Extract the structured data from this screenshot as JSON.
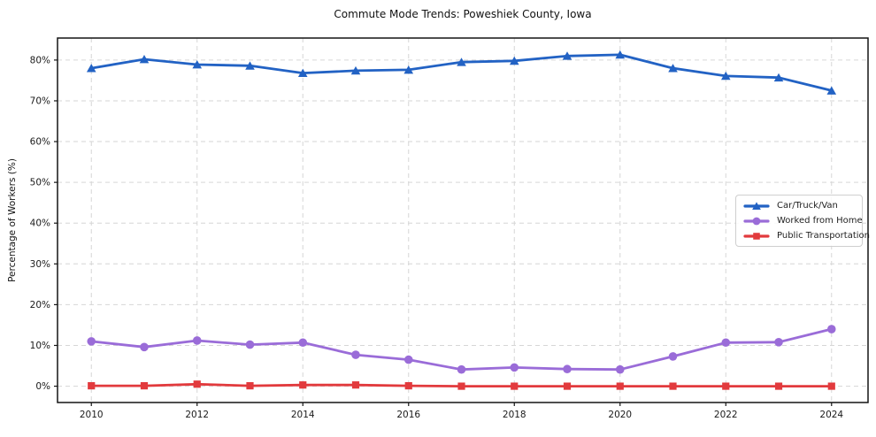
{
  "figure": {
    "title": "Commute Mode Trends: Poweshiek County, Iowa",
    "ylabel": "Percentage of Workers (%)"
  },
  "chart_data": {
    "type": "line",
    "title": "Commute Mode Trends: Poweshiek County, Iowa",
    "xlabel": "",
    "ylabel": "Percentage of Workers (%)",
    "x": [
      2010,
      2011,
      2012,
      2013,
      2014,
      2015,
      2016,
      2017,
      2018,
      2019,
      2020,
      2021,
      2022,
      2023,
      2024
    ],
    "series": [
      {
        "name": "Car/Truck/Van",
        "color": "#2262c4",
        "marker": "triangle",
        "values": [
          78.0,
          80.2,
          78.9,
          78.6,
          76.8,
          77.4,
          77.6,
          79.5,
          79.8,
          81.0,
          81.3,
          78.0,
          76.1,
          75.7,
          72.5
        ]
      },
      {
        "name": "Worked from Home",
        "color": "#9a6cd8",
        "marker": "circle",
        "values": [
          11.0,
          9.6,
          11.2,
          10.2,
          10.7,
          7.7,
          6.5,
          4.1,
          4.6,
          4.2,
          4.1,
          7.3,
          10.7,
          10.8,
          14.0
        ]
      },
      {
        "name": "Public Transportation",
        "color": "#e23a3d",
        "marker": "square",
        "values": [
          0.1,
          0.1,
          0.5,
          0.1,
          0.3,
          0.3,
          0.1,
          0.0,
          0.0,
          0.0,
          0.0,
          0.0,
          0.0,
          0.0,
          0.0
        ]
      }
    ],
    "x_ticks": {
      "values": [
        2010,
        2012,
        2014,
        2016,
        2018,
        2020,
        2022,
        2024
      ],
      "labels": [
        "2010",
        "2012",
        "2014",
        "2016",
        "2018",
        "2020",
        "2022",
        "2024"
      ]
    },
    "y_ticks": {
      "values": [
        0,
        10,
        20,
        30,
        40,
        50,
        60,
        70,
        80
      ],
      "labels": [
        "0%",
        "10%",
        "20%",
        "30%",
        "40%",
        "50%",
        "60%",
        "70%",
        "80%"
      ]
    },
    "xlim": [
      2009.36,
      2024.69
    ],
    "ylim": [
      -4.0,
      85.4
    ],
    "grid": true,
    "legend_position": "center-right"
  }
}
